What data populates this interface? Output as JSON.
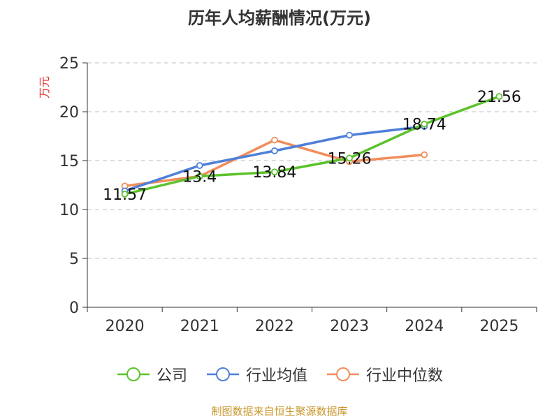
{
  "chart_data": {
    "type": "line",
    "title": "历年人均薪酬情况(万元)",
    "ylabel": "万元",
    "xlabel": "",
    "categories": [
      "2020",
      "2021",
      "2022",
      "2023",
      "2024",
      "2025"
    ],
    "ylim": [
      0,
      25
    ],
    "yticks": [
      0,
      5,
      10,
      15,
      20,
      25
    ],
    "grid": true,
    "legend_position": "bottom",
    "series": [
      {
        "name": "公司",
        "color": "#5cc22b",
        "values": [
          11.57,
          13.4,
          13.84,
          15.26,
          18.74,
          21.56
        ],
        "labels": [
          "11.57",
          "13.4",
          "13.84",
          "15.26",
          "18.74",
          "21.56"
        ]
      },
      {
        "name": "行业均值",
        "color": "#4e7fd9",
        "values": [
          11.9,
          14.5,
          16.0,
          17.6,
          18.5,
          null
        ],
        "labels": []
      },
      {
        "name": "行业中位数",
        "color": "#f18d5a",
        "values": [
          12.4,
          13.4,
          17.1,
          14.9,
          15.6,
          null
        ],
        "labels": []
      }
    ]
  },
  "source_note": "制图数据来自恒生聚源数据库",
  "colors": {
    "ylabel": "#e03030",
    "source": "#c8962a",
    "axis": "#333333",
    "grid": "#cccccc"
  }
}
